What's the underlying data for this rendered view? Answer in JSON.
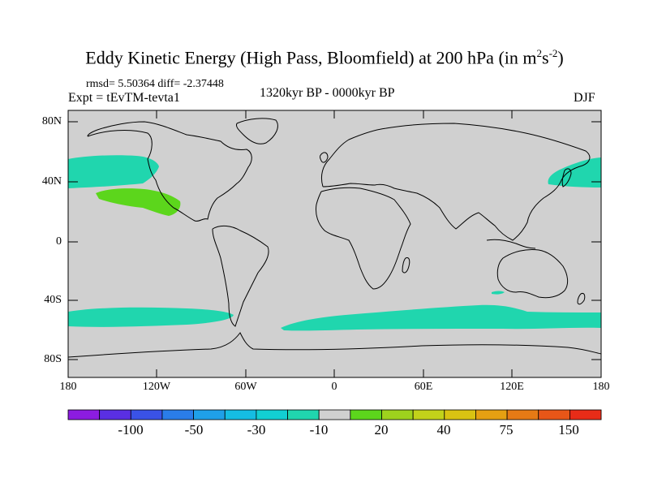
{
  "title": {
    "main": "Eddy Kinetic Energy (High Pass, Bloomfield) at 200 hPa (in m",
    "sup1": "2",
    "mid": "s",
    "sup2": "-2",
    "end": ")"
  },
  "stats": "rmsd= 5.50364 diff= -2.37448",
  "experiment": "Expt = tEvTM-tevta1",
  "period": "1320kyr BP - 0000kyr BP",
  "season": "DJF",
  "map": {
    "projection": "cylindrical equidistant",
    "lat_labels": [
      "80N",
      "40N",
      "0",
      "40S",
      "80S"
    ],
    "lon_labels": [
      "180",
      "120W",
      "60W",
      "0",
      "60E",
      "120E",
      "180"
    ],
    "land_color": "#d0d0d0",
    "features": [
      {
        "name": "north-pacific-west",
        "level": "-20 to -10",
        "color": "#20d6ae"
      },
      {
        "name": "north-pacific-east",
        "level": "-20 to -10",
        "color": "#20d6ae"
      },
      {
        "name": "subtropical-pacific",
        "level": "10 to 20",
        "color": "#5cd61c"
      },
      {
        "name": "southern-ocean-pacific",
        "level": "-20 to -10",
        "color": "#20d6ae"
      },
      {
        "name": "southern-ocean-atlantic-indian",
        "level": "-20 to -10",
        "color": "#20d6ae"
      }
    ]
  },
  "colorbar": {
    "colors": [
      "#8c1ce0",
      "#5a2fe3",
      "#3a52e6",
      "#2a7de9",
      "#1fa0e8",
      "#15bde3",
      "#12cfd3",
      "#20d6ae",
      "#d0d0d0",
      "#5cd61c",
      "#9ed21d",
      "#c2d21a",
      "#d9c312",
      "#e5a012",
      "#e67a15",
      "#e85618",
      "#e82c18"
    ],
    "labels": [
      "-100",
      "-50",
      "-30",
      "-10",
      "20",
      "40",
      "75",
      "150"
    ]
  }
}
